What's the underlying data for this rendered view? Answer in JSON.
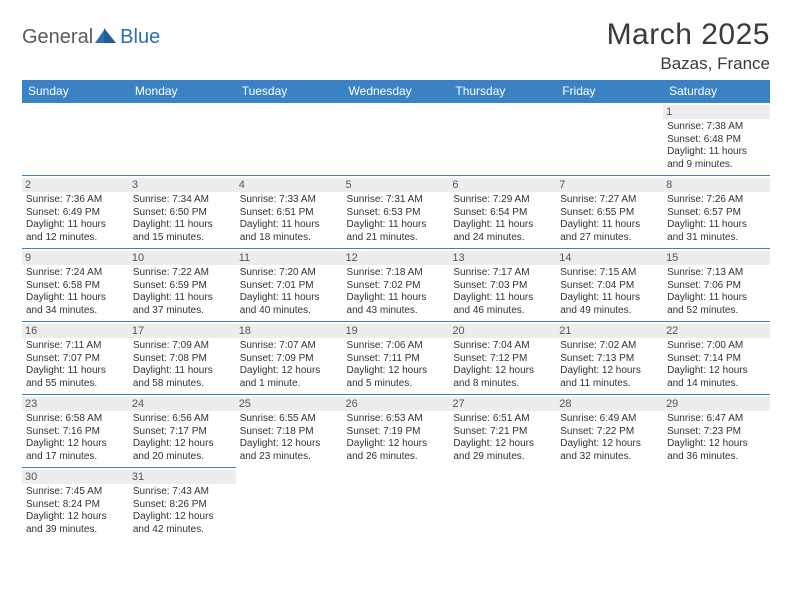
{
  "logo": {
    "text1": "General",
    "text2": "Blue"
  },
  "title": "March 2025",
  "location": "Bazas, France",
  "colors": {
    "header_bg": "#3b82c4",
    "header_fg": "#ffffff",
    "daynum_bg": "#ededed",
    "border": "#3b82c4",
    "logo_gray": "#5a5a5a",
    "logo_blue": "#2b6fb0"
  },
  "weekdays": [
    "Sunday",
    "Monday",
    "Tuesday",
    "Wednesday",
    "Thursday",
    "Friday",
    "Saturday"
  ],
  "grid": {
    "rows": 6,
    "cols": 7,
    "first_weekday_index": 6,
    "days_in_month": 31
  },
  "days": [
    {
      "n": 1,
      "sunrise": "7:38 AM",
      "sunset": "6:48 PM",
      "dl_h": 11,
      "dl_m": 9
    },
    {
      "n": 2,
      "sunrise": "7:36 AM",
      "sunset": "6:49 PM",
      "dl_h": 11,
      "dl_m": 12
    },
    {
      "n": 3,
      "sunrise": "7:34 AM",
      "sunset": "6:50 PM",
      "dl_h": 11,
      "dl_m": 15
    },
    {
      "n": 4,
      "sunrise": "7:33 AM",
      "sunset": "6:51 PM",
      "dl_h": 11,
      "dl_m": 18
    },
    {
      "n": 5,
      "sunrise": "7:31 AM",
      "sunset": "6:53 PM",
      "dl_h": 11,
      "dl_m": 21
    },
    {
      "n": 6,
      "sunrise": "7:29 AM",
      "sunset": "6:54 PM",
      "dl_h": 11,
      "dl_m": 24
    },
    {
      "n": 7,
      "sunrise": "7:27 AM",
      "sunset": "6:55 PM",
      "dl_h": 11,
      "dl_m": 27
    },
    {
      "n": 8,
      "sunrise": "7:26 AM",
      "sunset": "6:57 PM",
      "dl_h": 11,
      "dl_m": 31
    },
    {
      "n": 9,
      "sunrise": "7:24 AM",
      "sunset": "6:58 PM",
      "dl_h": 11,
      "dl_m": 34
    },
    {
      "n": 10,
      "sunrise": "7:22 AM",
      "sunset": "6:59 PM",
      "dl_h": 11,
      "dl_m": 37
    },
    {
      "n": 11,
      "sunrise": "7:20 AM",
      "sunset": "7:01 PM",
      "dl_h": 11,
      "dl_m": 40
    },
    {
      "n": 12,
      "sunrise": "7:18 AM",
      "sunset": "7:02 PM",
      "dl_h": 11,
      "dl_m": 43
    },
    {
      "n": 13,
      "sunrise": "7:17 AM",
      "sunset": "7:03 PM",
      "dl_h": 11,
      "dl_m": 46
    },
    {
      "n": 14,
      "sunrise": "7:15 AM",
      "sunset": "7:04 PM",
      "dl_h": 11,
      "dl_m": 49
    },
    {
      "n": 15,
      "sunrise": "7:13 AM",
      "sunset": "7:06 PM",
      "dl_h": 11,
      "dl_m": 52
    },
    {
      "n": 16,
      "sunrise": "7:11 AM",
      "sunset": "7:07 PM",
      "dl_h": 11,
      "dl_m": 55
    },
    {
      "n": 17,
      "sunrise": "7:09 AM",
      "sunset": "7:08 PM",
      "dl_h": 11,
      "dl_m": 58
    },
    {
      "n": 18,
      "sunrise": "7:07 AM",
      "sunset": "7:09 PM",
      "dl_h": 12,
      "dl_m": 1
    },
    {
      "n": 19,
      "sunrise": "7:06 AM",
      "sunset": "7:11 PM",
      "dl_h": 12,
      "dl_m": 5
    },
    {
      "n": 20,
      "sunrise": "7:04 AM",
      "sunset": "7:12 PM",
      "dl_h": 12,
      "dl_m": 8
    },
    {
      "n": 21,
      "sunrise": "7:02 AM",
      "sunset": "7:13 PM",
      "dl_h": 12,
      "dl_m": 11
    },
    {
      "n": 22,
      "sunrise": "7:00 AM",
      "sunset": "7:14 PM",
      "dl_h": 12,
      "dl_m": 14
    },
    {
      "n": 23,
      "sunrise": "6:58 AM",
      "sunset": "7:16 PM",
      "dl_h": 12,
      "dl_m": 17
    },
    {
      "n": 24,
      "sunrise": "6:56 AM",
      "sunset": "7:17 PM",
      "dl_h": 12,
      "dl_m": 20
    },
    {
      "n": 25,
      "sunrise": "6:55 AM",
      "sunset": "7:18 PM",
      "dl_h": 12,
      "dl_m": 23
    },
    {
      "n": 26,
      "sunrise": "6:53 AM",
      "sunset": "7:19 PM",
      "dl_h": 12,
      "dl_m": 26
    },
    {
      "n": 27,
      "sunrise": "6:51 AM",
      "sunset": "7:21 PM",
      "dl_h": 12,
      "dl_m": 29
    },
    {
      "n": 28,
      "sunrise": "6:49 AM",
      "sunset": "7:22 PM",
      "dl_h": 12,
      "dl_m": 32
    },
    {
      "n": 29,
      "sunrise": "6:47 AM",
      "sunset": "7:23 PM",
      "dl_h": 12,
      "dl_m": 36
    },
    {
      "n": 30,
      "sunrise": "7:45 AM",
      "sunset": "8:24 PM",
      "dl_h": 12,
      "dl_m": 39
    },
    {
      "n": 31,
      "sunrise": "7:43 AM",
      "sunset": "8:26 PM",
      "dl_h": 12,
      "dl_m": 42
    }
  ],
  "labels": {
    "sunrise": "Sunrise:",
    "sunset": "Sunset:",
    "daylight_prefix": "Daylight:",
    "hours_word": "hours",
    "and_word": "and",
    "minutes_word": "minutes.",
    "minute_word": "minute."
  }
}
